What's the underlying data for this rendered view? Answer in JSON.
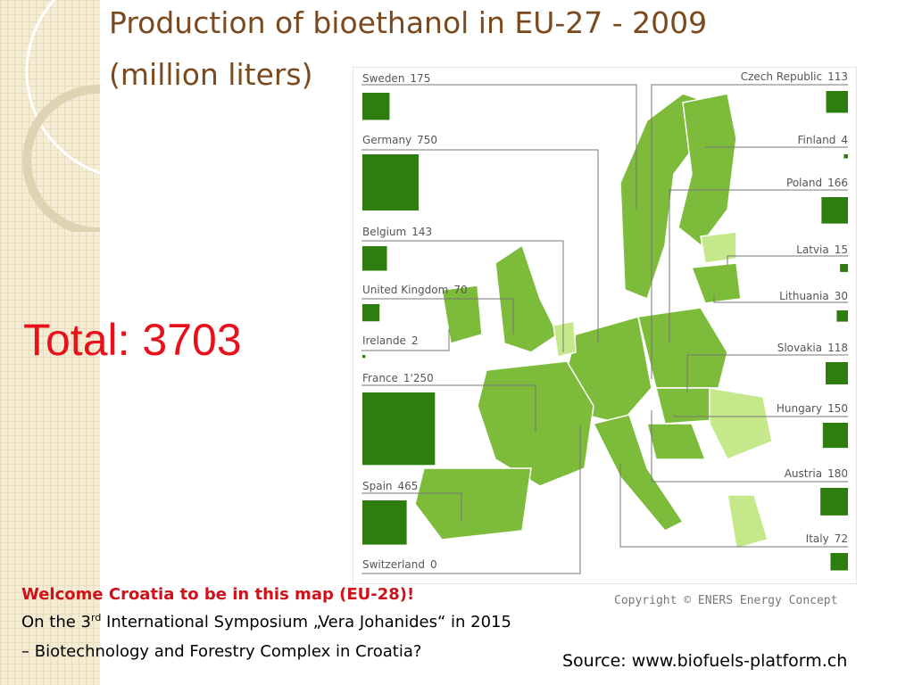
{
  "title_line1": "Production of bioethanol in EU-27 - 2009",
  "title_line2": "(million liters)",
  "total": "Total: 3703",
  "countries": [
    {
      "name": "Sweden",
      "value": 175
    },
    {
      "name": "Germany",
      "value": 750
    },
    {
      "name": "Belgium",
      "value": 143
    },
    {
      "name": "United Kingdom",
      "value": 70
    },
    {
      "name": "Irelande",
      "value": 2
    },
    {
      "name": "France",
      "value": 1250,
      "value_label": "1'250"
    },
    {
      "name": "Spain",
      "value": 465
    },
    {
      "name": "Switzerland",
      "value": 0
    },
    {
      "name": "Czech Republic",
      "value": 113
    },
    {
      "name": "Finland",
      "value": 4
    },
    {
      "name": "Poland",
      "value": 166
    },
    {
      "name": "Latvia",
      "value": 15
    },
    {
      "name": "Lithuania",
      "value": 30
    },
    {
      "name": "Slovakia",
      "value": 118
    },
    {
      "name": "Hungary",
      "value": 150
    },
    {
      "name": "Austria",
      "value": 180
    },
    {
      "name": "Italy",
      "value": 72
    }
  ],
  "copyright": "Copyright © ENERS Energy Concept",
  "welcome": "Welcome Croatia to be in this map (EU-28)!",
  "symposium_pre": "On the 3",
  "symposium_sup": "rd",
  "symposium_post": " International Symposium „Vera Johanides“ in 2015",
  "symposium_line2": "– Biotechnology and Forestry Complex in Croatia?",
  "source": "Source: www.biofuels-platform.ch"
}
